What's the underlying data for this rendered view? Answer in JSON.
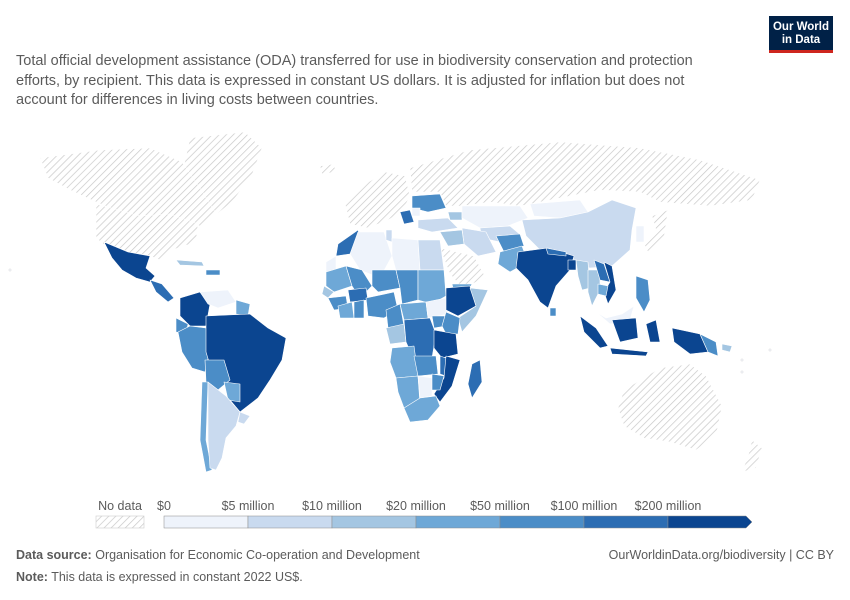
{
  "logo": {
    "line1": "Our World",
    "line2": "in Data"
  },
  "subtitle": "Total official development assistance (ODA) transferred for use in biodiversity conservation and protection efforts, by recipient. This data is expressed in constant US dollars. It is adjusted for inflation but does not account for differences in living costs between countries.",
  "legend": {
    "no_data_label": "No data",
    "bins": [
      "$0",
      "$5 million",
      "$10 million",
      "$20 million",
      "$50 million",
      "$100 million",
      "$200 million"
    ],
    "colors": [
      "#eef3fb",
      "#c9daef",
      "#a4c6e2",
      "#6ea8d7",
      "#4b8dc7",
      "#2c6db3",
      "#0b4590"
    ]
  },
  "colors": {
    "no_data": "#e6e6e6",
    "land_unlisted": "#f1f3f8",
    "logo_bg": "#002147",
    "logo_accent": "#ce261e"
  },
  "footer": {
    "source_label": "Data source:",
    "source_text": "Organisation for Economic Co-operation and Development",
    "note_label": "Note:",
    "note_text": "This data is expressed in constant 2022 US$.",
    "url": "OurWorldinData.org/biodiversity | CC BY"
  }
}
